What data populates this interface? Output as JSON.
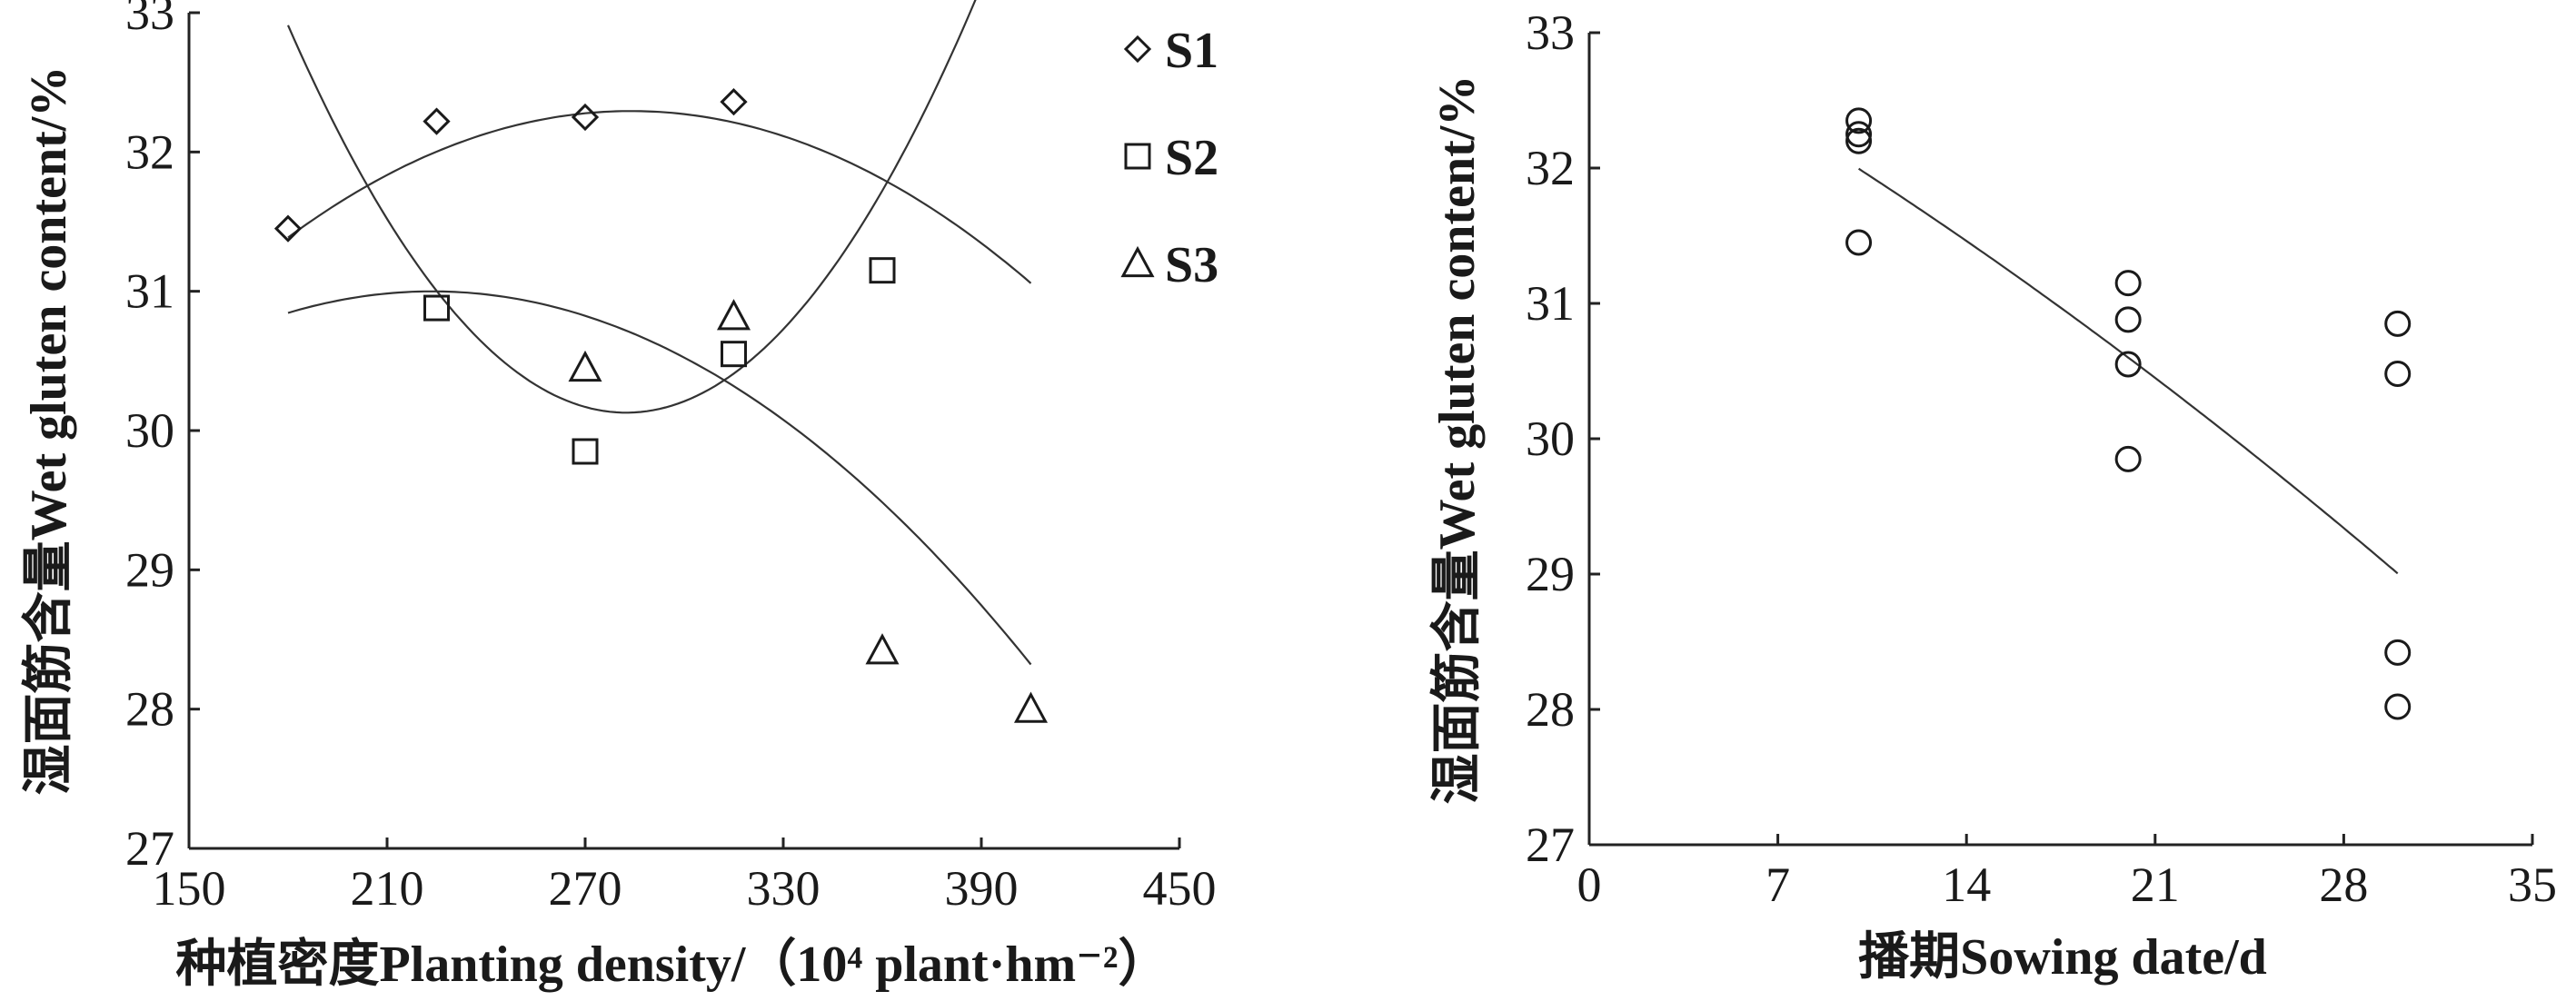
{
  "chart_data": [
    {
      "type": "scatter",
      "xlabel": "种植密度Planting density/（10⁴ plant·hm⁻²）",
      "ylabel": "湿面筋含量Wet gluten content/%",
      "xlim": [
        150,
        450
      ],
      "ylim": [
        27,
        33
      ],
      "xticks": [
        "150",
        "210",
        "270",
        "330",
        "390",
        "450"
      ],
      "yticks": [
        "27",
        "28",
        "29",
        "30",
        "31",
        "32",
        "33"
      ],
      "legend_position": "top-right",
      "series": [
        {
          "name": "S1",
          "marker": "diamond",
          "x": [
            180,
            225,
            270,
            315
          ],
          "y": [
            31.45,
            32.22,
            32.25,
            32.36
          ],
          "fit_quadratic": [
            25.51,
            0.0478,
            -8.42e-05
          ],
          "fit_x_range": [
            180,
            405
          ]
        },
        {
          "name": "S2",
          "marker": "square",
          "x": [
            225,
            270,
            315,
            360
          ],
          "y": [
            30.88,
            29.85,
            30.55,
            31.15
          ],
          "fit_quadratic": [
            51.27,
            -0.1497,
            0.000265
          ],
          "fit_x_range": [
            180,
            405
          ]
        },
        {
          "name": "S3",
          "marker": "triangle",
          "x": [
            270,
            315,
            360,
            405
          ],
          "y": [
            30.45,
            30.82,
            28.42,
            28.0
          ],
          "fit_quadratic": [
            26.93,
            0.0364,
            -8.14e-05
          ],
          "fit_x_range": [
            180,
            405
          ]
        }
      ]
    },
    {
      "type": "scatter",
      "xlabel": "播期Sowing date/d",
      "ylabel": "湿面筋含量Wet gluten content/%",
      "xlim": [
        0,
        35
      ],
      "ylim": [
        27,
        33
      ],
      "xticks": [
        "0",
        "7",
        "14",
        "21",
        "28",
        "35"
      ],
      "yticks": [
        "27",
        "28",
        "29",
        "30",
        "31",
        "32",
        "33"
      ],
      "series": [
        {
          "marker": "circle",
          "x": [
            10,
            10,
            10,
            10,
            20,
            20,
            20,
            20,
            30,
            30,
            30,
            30
          ],
          "y": [
            32.35,
            32.25,
            32.2,
            31.45,
            31.15,
            30.88,
            30.55,
            29.85,
            30.85,
            30.48,
            28.42,
            28.02
          ],
          "fit_quadratic": [
            33.19,
            -0.1095,
            -0.001
          ],
          "fit_x_range": [
            10,
            30
          ]
        }
      ]
    }
  ]
}
